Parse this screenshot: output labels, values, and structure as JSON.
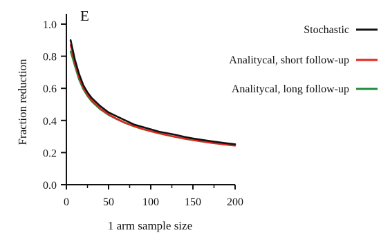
{
  "chart_data": {
    "type": "line",
    "panel_label": "E",
    "xlabel": "1 arm sample size",
    "ylabel": "Fraction reduction",
    "xlim": [
      0,
      200
    ],
    "ylim": [
      0,
      1.0
    ],
    "xticks": [
      "0",
      "50",
      "100",
      "150",
      "200"
    ],
    "yticks": [
      "0.0",
      "0.2",
      "0.4",
      "0.6",
      "0.8",
      "1.0"
    ],
    "x": [
      5,
      10,
      15,
      20,
      25,
      30,
      40,
      50,
      60,
      70,
      80,
      90,
      100,
      110,
      120,
      130,
      140,
      150,
      160,
      170,
      180,
      190,
      200
    ],
    "series": [
      {
        "name": "Stochastic",
        "color": "#111111",
        "values": [
          0.9,
          0.78,
          0.69,
          0.62,
          0.575,
          0.54,
          0.49,
          0.45,
          0.425,
          0.4,
          0.375,
          0.36,
          0.345,
          0.33,
          0.32,
          0.31,
          0.298,
          0.288,
          0.28,
          0.272,
          0.265,
          0.258,
          0.252
        ]
      },
      {
        "name": "Analitycal, short follow-up",
        "color": "#e3261c",
        "values": [
          0.87,
          0.76,
          0.67,
          0.605,
          0.56,
          0.525,
          0.475,
          0.438,
          0.41,
          0.385,
          0.365,
          0.348,
          0.333,
          0.32,
          0.308,
          0.297,
          0.287,
          0.278,
          0.27,
          0.262,
          0.255,
          0.249,
          0.243
        ]
      },
      {
        "name": "Analitycal, long follow-up",
        "color": "#1f8a3a",
        "values": [
          0.83,
          0.74,
          0.655,
          0.595,
          0.552,
          0.518,
          0.47,
          0.434,
          0.407,
          0.383,
          0.363,
          0.346,
          0.332,
          0.319,
          0.307,
          0.296,
          0.286,
          0.277,
          0.269,
          0.262,
          0.255,
          0.249,
          0.244
        ]
      }
    ],
    "grid": false,
    "legend_position": "top-right"
  }
}
